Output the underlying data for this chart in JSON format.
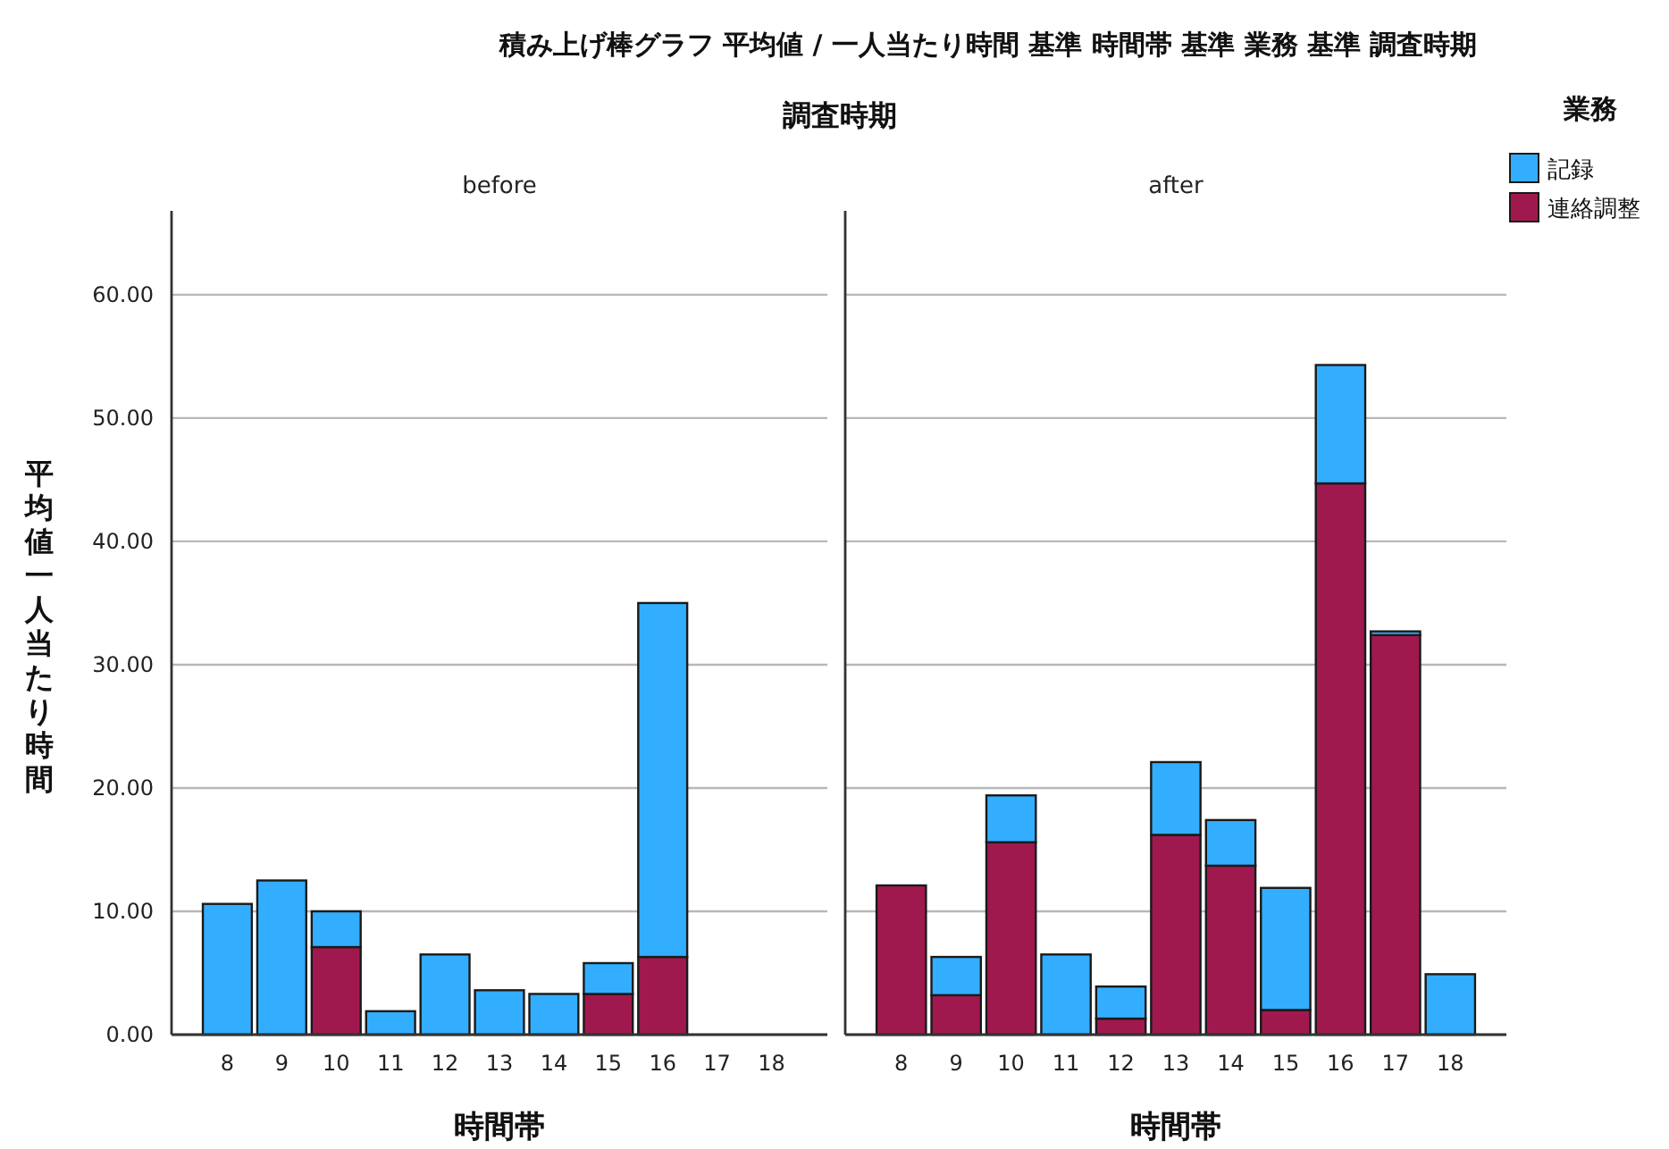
{
  "chart_data": [
    {
      "type": "bar",
      "title": "before",
      "xlabel": "時間帯",
      "ylabel": "平均値一人当たり時間",
      "stacked": true,
      "categories": [
        "8",
        "9",
        "10",
        "11",
        "12",
        "13",
        "14",
        "15",
        "16",
        "17",
        "18"
      ],
      "series": [
        {
          "color": "#a0194e",
          "values": [
            null,
            null,
            7.1,
            null,
            null,
            null,
            null,
            3.3,
            6.3,
            null,
            null
          ]
        },
        {
          "color": "#33aefe",
          "values": [
            10.6,
            12.5,
            2.9,
            1.9,
            6.5,
            3.6,
            3.3,
            2.5,
            28.7,
            null,
            null
          ]
        }
      ],
      "ylim": [
        0,
        66.8
      ],
      "yticks": [
        {
          "value": 0,
          "label": "0.00"
        },
        {
          "value": 10,
          "label": "10.00"
        },
        {
          "value": 20,
          "label": "20.00"
        },
        {
          "value": 30,
          "label": "30.00"
        },
        {
          "value": 40,
          "label": "40.00"
        },
        {
          "value": 50,
          "label": "50.00"
        },
        {
          "value": 60,
          "label": "60.00"
        }
      ],
      "grid": "y",
      "annotations": [
        "積み上げ棒グラフ 平均値 / 一人当たり時間 基準 時間帯 基準 業務 基準 調査時期",
        "調査時期"
      ]
    },
    {
      "type": "bar",
      "title": "after",
      "xlabel": "時間帯",
      "stacked": true,
      "categories": [
        "8",
        "9",
        "10",
        "11",
        "12",
        "13",
        "14",
        "15",
        "16",
        "17",
        "18"
      ],
      "series": [
        {
          "name": "連絡調整",
          "color": "#a0194e",
          "values": [
            12.1,
            3.2,
            15.6,
            null,
            1.3,
            16.2,
            13.7,
            2.0,
            44.7,
            32.4,
            null
          ]
        },
        {
          "name": "記録",
          "color": "#33aefe",
          "values": [
            null,
            3.1,
            3.8,
            6.5,
            2.6,
            5.9,
            3.7,
            9.9,
            9.6,
            0.3,
            4.9
          ]
        }
      ],
      "ylim": [
        0,
        66.8
      ],
      "yticks": [
        0,
        10,
        20,
        30,
        40,
        50,
        60
      ],
      "grid": "y",
      "tick_labels": "x",
      "legend": "top right",
      "legend_title": "業務"
    }
  ]
}
